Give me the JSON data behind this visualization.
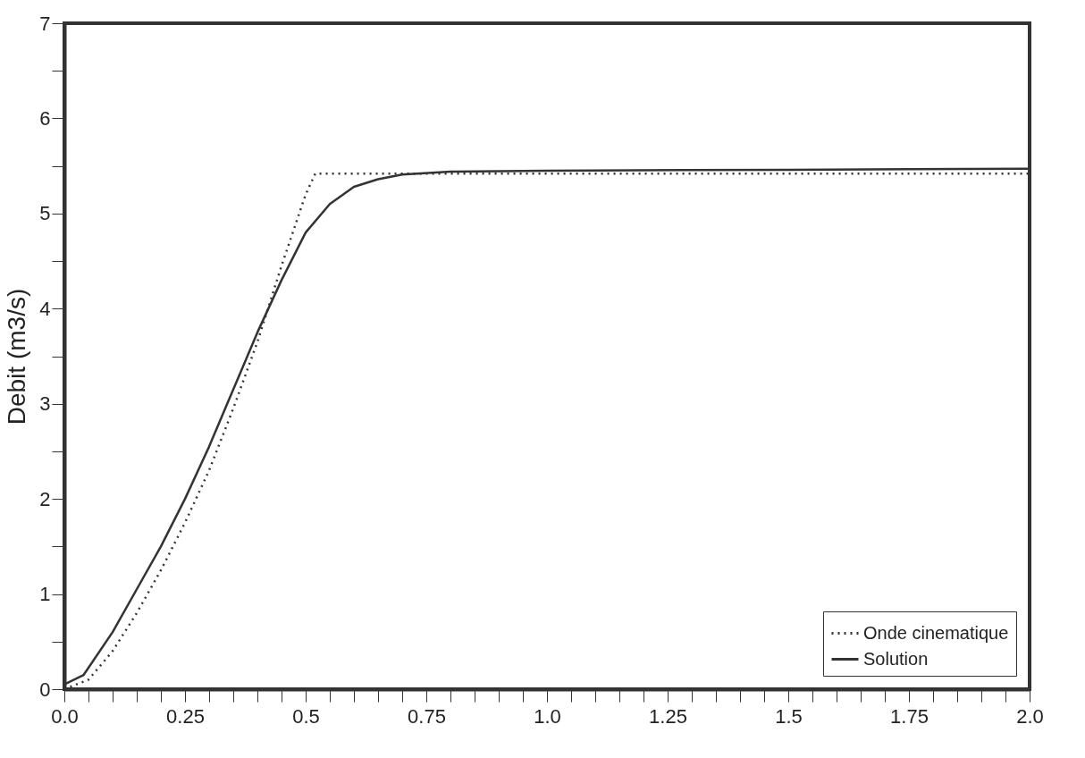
{
  "chart_data": {
    "type": "line",
    "ylabel": "Debit (m3/s)",
    "xlim": [
      0,
      2.0
    ],
    "ylim": [
      0,
      7
    ],
    "xticks": [
      {
        "value": 0,
        "label": "0.0"
      },
      {
        "value": 0.05,
        "label": null
      },
      {
        "value": 0.1,
        "label": null
      },
      {
        "value": 0.15,
        "label": null
      },
      {
        "value": 0.2,
        "label": null
      },
      0.25,
      {
        "value": 0.3,
        "label": null
      },
      {
        "value": 0.35,
        "label": null
      },
      {
        "value": 0.4,
        "label": null
      },
      {
        "value": 0.45,
        "label": null
      },
      0.5,
      {
        "value": 0.55,
        "label": null
      },
      {
        "value": 0.6,
        "label": null
      },
      {
        "value": 0.65,
        "label": null
      },
      {
        "value": 0.7,
        "label": null
      },
      0.75,
      {
        "value": 0.8,
        "label": null
      },
      {
        "value": 0.85,
        "label": null
      },
      {
        "value": 0.9,
        "label": null
      },
      {
        "value": 0.95,
        "label": null
      },
      {
        "value": 1.0,
        "label": "1.0"
      },
      {
        "value": 1.05,
        "label": null
      },
      {
        "value": 1.1,
        "label": null
      },
      {
        "value": 1.15,
        "label": null
      },
      {
        "value": 1.2,
        "label": null
      },
      1.25,
      {
        "value": 1.3,
        "label": null
      },
      {
        "value": 1.35,
        "label": null
      },
      {
        "value": 1.4,
        "label": null
      },
      {
        "value": 1.45,
        "label": null
      },
      1.5,
      {
        "value": 1.55,
        "label": null
      },
      {
        "value": 1.6,
        "label": null
      },
      {
        "value": 1.65,
        "label": null
      },
      {
        "value": 1.7,
        "label": null
      },
      1.75,
      {
        "value": 1.8,
        "label": null
      },
      {
        "value": 1.85,
        "label": null
      },
      {
        "value": 1.9,
        "label": null
      },
      {
        "value": 1.95,
        "label": null
      },
      {
        "value": 2.0,
        "label": "2.0"
      }
    ],
    "yticks": [
      0,
      {
        "value": 0.5,
        "label": null
      },
      1,
      {
        "value": 1.5,
        "label": null
      },
      2,
      {
        "value": 2.5,
        "label": null
      },
      3,
      {
        "value": 3.5,
        "label": null
      },
      4,
      {
        "value": 4.5,
        "label": null
      },
      5,
      {
        "value": 5.5,
        "label": null
      },
      6,
      {
        "value": 6.5,
        "label": null
      },
      7
    ],
    "legend": "bottom right",
    "grid": false,
    "marker": "none",
    "series": [
      {
        "name": "Onde cinematique",
        "color": "#333333",
        "line_style": "dotted",
        "x": [
          0,
          0.05,
          0.1,
          0.15,
          0.2,
          0.25,
          0.3,
          0.35,
          0.4,
          0.45,
          0.5,
          0.52,
          2.0
        ],
        "values": [
          0,
          0.1,
          0.4,
          0.8,
          1.25,
          1.75,
          2.3,
          2.95,
          3.65,
          4.45,
          5.2,
          5.42,
          5.42
        ]
      },
      {
        "name": "Solution",
        "color": "#333333",
        "line_style": "solid",
        "x": [
          0,
          0.04,
          0.1,
          0.15,
          0.2,
          0.25,
          0.3,
          0.35,
          0.4,
          0.45,
          0.5,
          0.55,
          0.6,
          0.65,
          0.7,
          0.8,
          1.0,
          1.5,
          2.0
        ],
        "values": [
          0.05,
          0.15,
          0.6,
          1.05,
          1.5,
          2.0,
          2.55,
          3.15,
          3.75,
          4.3,
          4.8,
          5.1,
          5.28,
          5.36,
          5.41,
          5.44,
          5.45,
          5.46,
          5.47
        ]
      }
    ]
  }
}
